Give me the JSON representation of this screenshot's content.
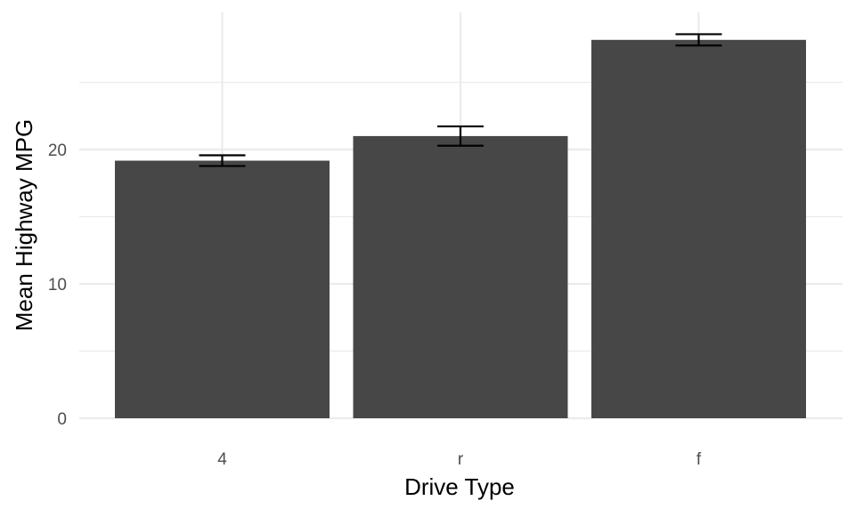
{
  "chart_data": {
    "type": "bar",
    "title": "",
    "xlabel": "Drive Type",
    "ylabel": "Mean Highway MPG",
    "categories": [
      "4",
      "r",
      "f"
    ],
    "values": [
      19.17,
      21.0,
      28.16
    ],
    "error_low": [
      18.77,
      20.28,
      27.74
    ],
    "error_high": [
      19.57,
      21.72,
      28.58
    ],
    "ylim": [
      0,
      30.2
    ],
    "y_ticks": [
      0,
      10,
      20
    ],
    "y_tick_labels": [
      "0",
      "10",
      "20"
    ],
    "grid": true,
    "legend": "none",
    "colors": {
      "bar": "#474747",
      "errorbar": "#000000",
      "grid": "#ebebeb",
      "background": "#ffffff"
    }
  }
}
